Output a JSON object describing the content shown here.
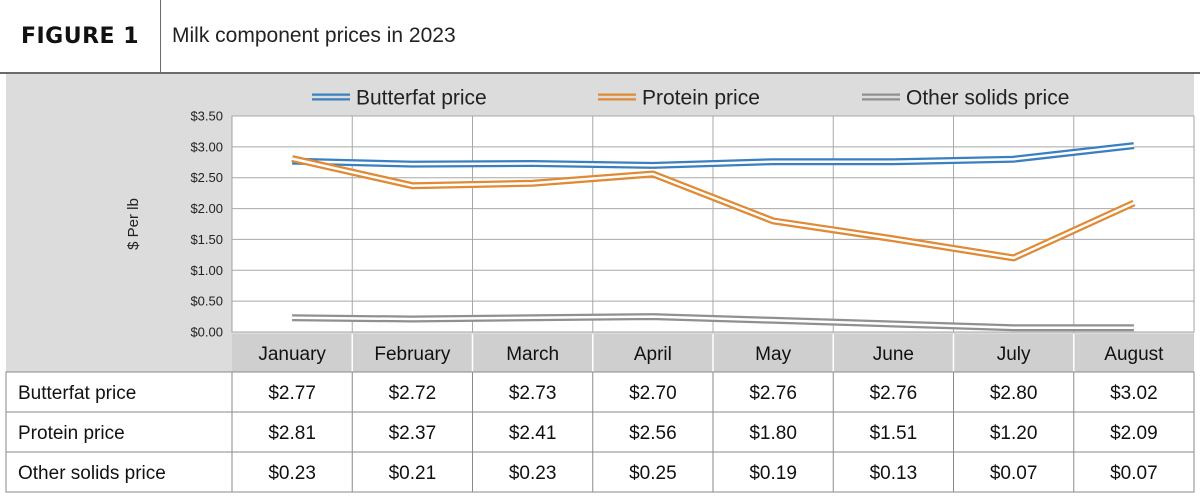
{
  "figure": {
    "number": "FIGURE 1",
    "title": "Milk component prices in 2023"
  },
  "chart_data": {
    "type": "line",
    "title": "Milk component prices in 2023",
    "ylabel": "$ Per lb",
    "xlabel": "",
    "ylim": [
      0,
      3.5
    ],
    "yticks": [
      "$0.00",
      "$0.50",
      "$1.00",
      "$1.50",
      "$2.00",
      "$2.50",
      "$3.00",
      "$3.50"
    ],
    "ytick_values": [
      0,
      0.5,
      1,
      1.5,
      2,
      2.5,
      3,
      3.5
    ],
    "categories": [
      "January",
      "February",
      "March",
      "April",
      "May",
      "June",
      "July",
      "August"
    ],
    "legend_position": "top",
    "grid": true,
    "series": [
      {
        "name": "Butterfat price",
        "color": "#3a7fc0",
        "values": [
          2.77,
          2.72,
          2.73,
          2.7,
          2.76,
          2.76,
          2.8,
          3.02
        ],
        "labels": [
          "$2.77",
          "$2.72",
          "$2.73",
          "$2.70",
          "$2.76",
          "$2.76",
          "$2.80",
          "$3.02"
        ]
      },
      {
        "name": "Protein price",
        "color": "#e08a35",
        "values": [
          2.81,
          2.37,
          2.41,
          2.56,
          1.8,
          1.51,
          1.2,
          2.09
        ],
        "labels": [
          "$2.81",
          "$2.37",
          "$2.41",
          "$2.56",
          "$1.80",
          "$1.51",
          "$1.20",
          "$2.09"
        ]
      },
      {
        "name": "Other solids price",
        "color": "#909090",
        "values": [
          0.23,
          0.21,
          0.23,
          0.25,
          0.19,
          0.13,
          0.07,
          0.07
        ],
        "labels": [
          "$0.23",
          "$0.21",
          "$0.23",
          "$0.25",
          "$0.19",
          "$0.13",
          "$0.07",
          "$0.07"
        ]
      }
    ]
  }
}
